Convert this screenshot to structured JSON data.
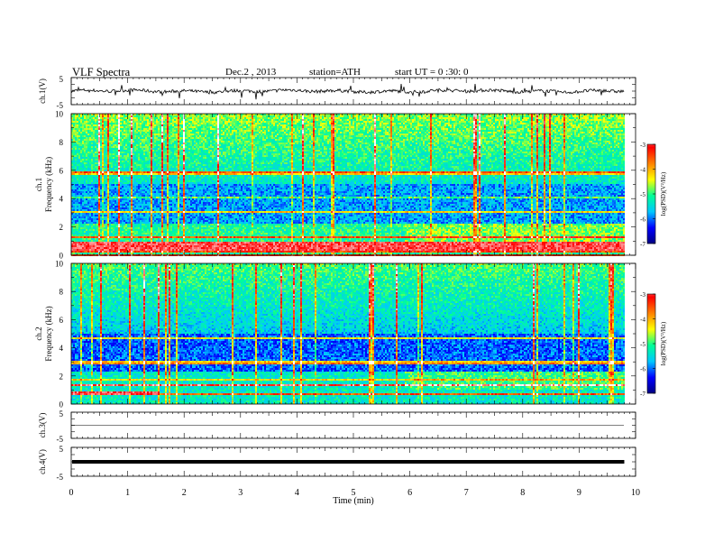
{
  "header": {
    "title": "VLF  Spectra",
    "date": "Dec.2  , 2013",
    "station": "station=ATH",
    "start": "start  UT  =   0 :30: 0"
  },
  "colors": {
    "background": "#ffffff",
    "axis": "#000000",
    "colormap": [
      "#00007f",
      "#0000ff",
      "#00c8ff",
      "#00ff99",
      "#ffff00",
      "#ff8000",
      "#ff0000",
      "#ffffff"
    ]
  },
  "chart_data": [
    {
      "id": "ch1_waveform",
      "type": "line",
      "ylabel": "ch.1(V)",
      "xlim": [
        0,
        10
      ],
      "ylim": [
        -5,
        5
      ],
      "yticks": [
        "5",
        "-5"
      ],
      "series": [
        {
          "x_end": 9.8,
          "baseline": 0,
          "noise_amplitude": 0.6,
          "spike_amplitude": 2.5
        }
      ]
    },
    {
      "id": "ch1_spectrogram",
      "type": "heatmap",
      "ylabel_channel": "ch.1",
      "ylabel": "Frequency  (kHz)",
      "xlim": [
        0,
        10
      ],
      "ylim": [
        0,
        10
      ],
      "yticks": [
        "0",
        "2",
        "4",
        "6",
        "8",
        "10"
      ],
      "x_end": 9.8,
      "colorbar": {
        "label": "log(PSD)(V²/Hz)",
        "range": [
          -7,
          -3
        ],
        "ticks": [
          "-3",
          "-4",
          "-5",
          "-6",
          "-7"
        ]
      },
      "regime_change_min": 5.9,
      "low_freq_red_band_khz": [
        0.4,
        1.0
      ]
    },
    {
      "id": "ch2_spectrogram",
      "type": "heatmap",
      "ylabel_channel": "ch.2",
      "ylabel": "Frequency  (kHz)",
      "xlim": [
        0,
        10
      ],
      "ylim": [
        0,
        10
      ],
      "yticks": [
        "0",
        "2",
        "4",
        "6",
        "8",
        "10"
      ],
      "x_end": 9.8,
      "colorbar": {
        "label": "log(PSD)(V²/Hz)",
        "range": [
          -7,
          -3
        ],
        "ticks": [
          "-3",
          "-4",
          "-5",
          "-6",
          "-7"
        ]
      },
      "regime_change_min": 5.9,
      "red_band_khz": [
        0.6,
        0.9
      ],
      "red_band_end_min": 1.55
    },
    {
      "id": "ch3_waveform",
      "type": "line",
      "ylabel": "ch.3(V)",
      "xlim": [
        0,
        10
      ],
      "ylim": [
        -5,
        5
      ],
      "yticks": [
        "5",
        "-5"
      ],
      "series": [
        {
          "x_end": 9.8,
          "baseline": 0,
          "noise_amplitude": 0.05
        }
      ]
    },
    {
      "id": "ch4_waveform",
      "type": "line",
      "ylabel": "ch.4(V)",
      "xlim": [
        0,
        10
      ],
      "ylim": [
        -5,
        5
      ],
      "yticks": [
        "5",
        "-5"
      ],
      "series": [
        {
          "x_end": 9.8,
          "baseline": 0,
          "noise_amplitude": 0.3
        }
      ]
    }
  ],
  "xaxis": {
    "label": "Time  (min)",
    "ticks": [
      "0",
      "1",
      "2",
      "3",
      "4",
      "5",
      "6",
      "7",
      "8",
      "9",
      "10"
    ],
    "range": [
      0,
      10
    ]
  }
}
